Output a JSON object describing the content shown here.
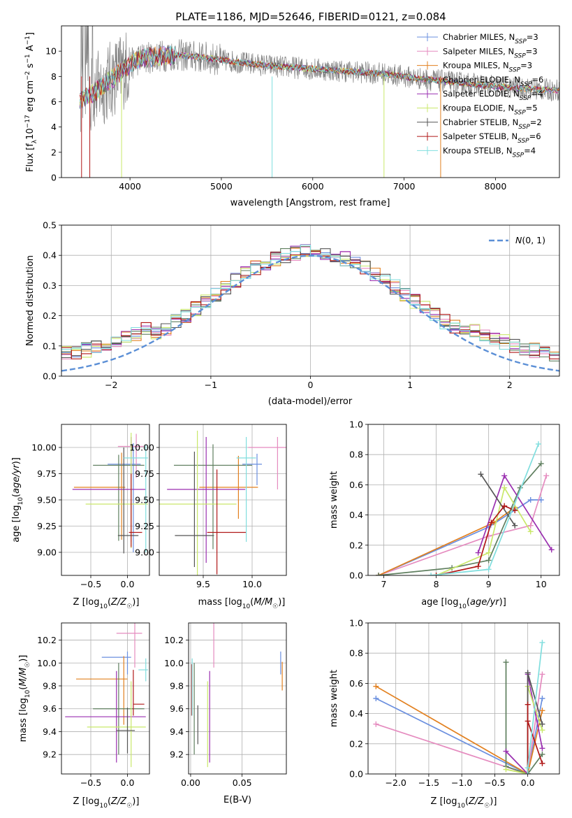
{
  "figure": {
    "title": "PLATE=1186, MJD=52646, FIBERID=0121, z=0.084"
  },
  "colors": {
    "chabrier_miles": "#6a8fdf",
    "salpeter_miles": "#e58bbf",
    "kroupa_miles": "#e2801f",
    "chabrier_elodie": "#5f7f5f",
    "salpeter_elodie": "#9a2fb0",
    "kroupa_elodie": "#c9e86a",
    "chabrier_stelib": "#555555",
    "salpeter_stelib": "#b01818",
    "kroupa_stelib": "#80dede",
    "data": "#808080",
    "gaussian": "#5b8fd6"
  },
  "chart_data": [
    {
      "id": "spectrum",
      "type": "line",
      "title": "PLATE=1186, MJD=52646, FIBERID=0121, z=0.084",
      "xlabel": "wavelength [Angstrom, rest frame]",
      "ylabel": "Flux [f_λ10^-17 erg cm^-2 s^-1 A^-1]",
      "xlim": [
        3250,
        8700
      ],
      "ylim": [
        0,
        12
      ],
      "xticks": [
        4000,
        5000,
        6000,
        7000,
        8000
      ],
      "yticks": [
        0,
        2,
        4,
        6,
        8,
        10
      ],
      "legend_position": "upper right",
      "continuum_x": [
        3500,
        3700,
        3900,
        4100,
        4300,
        4500,
        4800,
        5200,
        5600,
        6000,
        6400,
        6800,
        7200,
        7600,
        8000,
        8400,
        8700
      ],
      "continuum_y": [
        6.2,
        7.2,
        8.4,
        9.4,
        9.6,
        9.7,
        9.5,
        9.1,
        8.8,
        8.6,
        8.4,
        8.2,
        7.8,
        7.5,
        7.2,
        7.0,
        6.9
      ],
      "series": [
        {
          "name": "Chabrier MILES, N_SSP=3",
          "color_key": "chabrier_miles"
        },
        {
          "name": "Salpeter MILES, N_SSP=3",
          "color_key": "salpeter_miles"
        },
        {
          "name": "Kroupa MILES, N_SSP=3",
          "color_key": "kroupa_miles"
        },
        {
          "name": "Chabrier ELODIE, N_SSP=6",
          "color_key": "chabrier_elodie"
        },
        {
          "name": "Salpeter ELODIE, N_SSP=4",
          "color_key": "salpeter_elodie"
        },
        {
          "name": "Kroupa ELODIE, N_SSP=5",
          "color_key": "kroupa_elodie"
        },
        {
          "name": "Chabrier STELIB, N_SSP=2",
          "color_key": "chabrier_stelib"
        },
        {
          "name": "Salpeter STELIB, N_SSP=6",
          "color_key": "salpeter_stelib"
        },
        {
          "name": "Kroupa STELIB, N_SSP=4",
          "color_key": "kroupa_stelib"
        }
      ]
    },
    {
      "id": "residuals",
      "type": "line",
      "xlabel": "(data-model)/error",
      "ylabel": "Normed distribution",
      "xlim": [
        -2.5,
        2.5
      ],
      "ylim": [
        0,
        0.5
      ],
      "xticks": [
        -2,
        -1,
        0,
        1,
        2
      ],
      "yticks": [
        0.0,
        0.1,
        0.2,
        0.3,
        0.4,
        0.5
      ],
      "grid": true,
      "legend_position": "upper right",
      "gaussian_label": "N(0,1)",
      "bin_width": 0.1,
      "bins_start": -2.5,
      "series_keys": [
        "chabrier_miles",
        "salpeter_miles",
        "kroupa_miles",
        "chabrier_elodie",
        "salpeter_elodie",
        "kroupa_elodie",
        "chabrier_stelib",
        "salpeter_stelib",
        "kroupa_stelib"
      ]
    },
    {
      "id": "age_vs_z",
      "type": "scatter",
      "xlabel": "Z [log10(Z/Z☉)]",
      "ylabel": "age  [log10(age/yr)]",
      "xlim": [
        -0.9,
        0.3
      ],
      "ylim": [
        8.78,
        10.22
      ],
      "xticks": [
        -0.5,
        0.0
      ],
      "yticks": [
        9.0,
        9.25,
        9.5,
        9.75,
        10.0
      ],
      "grid": true,
      "points": [
        {
          "key": "chabrier_miles",
          "x": 0.08,
          "xerr": [
            0.35,
            0.1
          ],
          "y": 9.84,
          "yerr": [
            0.84,
            0.2
          ]
        },
        {
          "key": "salpeter_miles",
          "x": 0.12,
          "xerr": [
            0.25,
            0.1
          ],
          "y": 10.01,
          "yerr": [
            0.3,
            0.12
          ]
        },
        {
          "key": "kroupa_miles",
          "x": -0.08,
          "xerr": [
            0.65,
            0.05
          ],
          "y": 9.62,
          "yerr": [
            0.5,
            0.33
          ]
        },
        {
          "key": "chabrier_elodie",
          "x": -0.12,
          "xerr": [
            0.35,
            0.35
          ],
          "y": 9.83,
          "yerr": [
            0.72,
            0.1
          ]
        },
        {
          "key": "salpeter_elodie",
          "x": 0.05,
          "xerr": [
            0.8,
            0.2
          ],
          "y": 9.6,
          "yerr": [
            0.5,
            0.5
          ]
        },
        {
          "key": "kroupa_elodie",
          "x": 0.05,
          "xerr": [
            0.62,
            0.23
          ],
          "y": 9.46,
          "yerr": [
            0.42,
            0.68
          ]
        },
        {
          "key": "chabrier_stelib",
          "x": -0.05,
          "xerr": [
            0.08,
            0.2
          ],
          "y": 9.16,
          "yerr": [
            0.17,
            0.84
          ]
        },
        {
          "key": "salpeter_stelib",
          "x": 0.05,
          "xerr": [
            0.03,
            0.15
          ],
          "y": 9.19,
          "yerr": [
            0.14,
            0.56
          ]
        },
        {
          "key": "kroupa_stelib",
          "x": 0.25,
          "xerr": [
            0.3,
            0.03
          ],
          "y": 9.9,
          "yerr": [
            0.9,
            0.12
          ]
        }
      ]
    },
    {
      "id": "age_vs_mass",
      "type": "scatter",
      "xlabel": "mass [log10(M/M☉)]",
      "ylabel": "",
      "xlim": [
        9.05,
        10.35
      ],
      "ylim": [
        8.78,
        10.22
      ],
      "xticks": [
        9.5,
        10.0
      ],
      "yticks": [
        9.0,
        9.25,
        9.5,
        9.75,
        10.0
      ],
      "grid": true,
      "points": [
        {
          "key": "chabrier_miles",
          "x": 10.05,
          "xerr": [
            0.15,
            0.05
          ],
          "y": 9.84,
          "yerr": [
            0.2,
            0.1
          ]
        },
        {
          "key": "salpeter_miles",
          "x": 10.26,
          "xerr": [
            0.3,
            0.1
          ],
          "y": 10.0,
          "yerr": [
            0.4,
            0.1
          ]
        },
        {
          "key": "kroupa_miles",
          "x": 9.86,
          "xerr": [
            0.4,
            0.2
          ],
          "y": 9.62,
          "yerr": [
            0.3,
            0.3
          ]
        },
        {
          "key": "chabrier_elodie",
          "x": 9.6,
          "xerr": [
            0.4,
            0.4
          ],
          "y": 9.83,
          "yerr": [
            0.8,
            0.2
          ]
        },
        {
          "key": "salpeter_elodie",
          "x": 9.53,
          "xerr": [
            0.4,
            0.4
          ],
          "y": 9.6,
          "yerr": [
            0.7,
            0.5
          ]
        },
        {
          "key": "kroupa_elodie",
          "x": 9.44,
          "xerr": [
            0.4,
            0.4
          ],
          "y": 9.46,
          "yerr": [
            0.8,
            0.7
          ]
        },
        {
          "key": "chabrier_stelib",
          "x": 9.41,
          "xerr": [
            0.2,
            0.2
          ],
          "y": 9.16,
          "yerr": [
            0.3,
            0.8
          ]
        },
        {
          "key": "salpeter_stelib",
          "x": 9.64,
          "xerr": [
            0.1,
            0.3
          ],
          "y": 9.19,
          "yerr": [
            0.4,
            0.6
          ]
        },
        {
          "key": "kroupa_stelib",
          "x": 9.94,
          "xerr": [
            0.1,
            0.1
          ],
          "y": 9.9,
          "yerr": [
            0.8,
            0.2
          ]
        }
      ]
    },
    {
      "id": "mass_weight_vs_age",
      "type": "line",
      "xlabel": "age  [log10(age/yr)]",
      "ylabel": "mass weight",
      "xlim": [
        6.7,
        10.35
      ],
      "ylim": [
        0,
        1
      ],
      "xticks": [
        7,
        8,
        9,
        10
      ],
      "yticks": [
        0.0,
        0.2,
        0.4,
        0.6,
        0.8,
        1.0
      ],
      "grid": true,
      "series": [
        {
          "key": "chabrier_miles",
          "x": [
            6.9,
            9.0,
            9.8,
            10.0
          ],
          "y": [
            0.0,
            0.32,
            0.5,
            0.5
          ]
        },
        {
          "key": "salpeter_miles",
          "x": [
            6.9,
            9.0,
            9.8,
            10.1
          ],
          "y": [
            0.0,
            0.26,
            0.33,
            0.66
          ]
        },
        {
          "key": "kroupa_miles",
          "x": [
            6.9,
            9.1,
            9.5
          ],
          "y": [
            0.0,
            0.35,
            0.45
          ]
        },
        {
          "key": "chabrier_elodie",
          "x": [
            6.9,
            8.3,
            9.0,
            9.6,
            10.0
          ],
          "y": [
            0.0,
            0.05,
            0.1,
            0.58,
            0.74
          ]
        },
        {
          "key": "salpeter_elodie",
          "x": [
            8.8,
            9.3,
            10.2
          ],
          "y": [
            0.15,
            0.66,
            0.17
          ]
        },
        {
          "key": "kroupa_elodie",
          "x": [
            8.0,
            9.0,
            9.3,
            9.8
          ],
          "y": [
            0.0,
            0.15,
            0.58,
            0.29
          ]
        },
        {
          "key": "chabrier_stelib",
          "x": [
            8.85,
            9.5
          ],
          "y": [
            0.67,
            0.33
          ]
        },
        {
          "key": "salpeter_stelib",
          "x": [
            8.0,
            8.8,
            9.05,
            9.3,
            9.5
          ],
          "y": [
            0.0,
            0.06,
            0.35,
            0.46,
            0.43
          ]
        },
        {
          "key": "kroupa_stelib",
          "x": [
            7.9,
            9.0,
            9.95
          ],
          "y": [
            0.0,
            0.04,
            0.87
          ]
        }
      ]
    },
    {
      "id": "mass_vs_z",
      "type": "scatter",
      "xlabel": "Z [log10(Z/Z☉)]",
      "ylabel": "mass [log10(M/M☉)]",
      "xlim": [
        -0.9,
        0.3
      ],
      "ylim": [
        9.03,
        10.35
      ],
      "xticks": [
        -0.5,
        0.0
      ],
      "yticks": [
        9.2,
        9.4,
        9.6,
        9.8,
        10.0,
        10.2
      ],
      "grid": true,
      "points": [
        {
          "key": "chabrier_miles",
          "x": 0.0,
          "xerr": [
            0.35,
            0.05
          ],
          "y": 10.05,
          "yerr": [
            0.15,
            0.05
          ]
        },
        {
          "key": "salpeter_miles",
          "x": 0.1,
          "xerr": [
            0.25,
            0.1
          ],
          "y": 10.26,
          "yerr": [
            0.3,
            0.1
          ]
        },
        {
          "key": "kroupa_miles",
          "x": -0.05,
          "xerr": [
            0.65,
            0.05
          ],
          "y": 9.86,
          "yerr": [
            0.4,
            0.2
          ]
        },
        {
          "key": "chabrier_elodie",
          "x": -0.12,
          "xerr": [
            0.35,
            0.35
          ],
          "y": 9.6,
          "yerr": [
            0.4,
            0.4
          ]
        },
        {
          "key": "salpeter_elodie",
          "x": -0.15,
          "xerr": [
            0.7,
            0.4
          ],
          "y": 9.53,
          "yerr": [
            0.4,
            0.4
          ]
        },
        {
          "key": "kroupa_elodie",
          "x": 0.05,
          "xerr": [
            0.6,
            0.2
          ],
          "y": 9.44,
          "yerr": [
            0.35,
            0.4
          ]
        },
        {
          "key": "chabrier_stelib",
          "x": 0.0,
          "xerr": [
            0.15,
            0.1
          ],
          "y": 9.41,
          "yerr": [
            0.2,
            0.2
          ]
        },
        {
          "key": "salpeter_stelib",
          "x": 0.08,
          "xerr": [
            0.0,
            0.15
          ],
          "y": 9.64,
          "yerr": [
            0.1,
            0.3
          ]
        },
        {
          "key": "kroupa_stelib",
          "x": 0.25,
          "xerr": [
            0.1,
            0.03
          ],
          "y": 9.94,
          "yerr": [
            0.1,
            0.1
          ]
        }
      ]
    },
    {
      "id": "mass_vs_ebv",
      "type": "scatter",
      "xlabel": "E(B-V)",
      "ylabel": "",
      "xlim": [
        -0.002,
        0.093
      ],
      "ylim": [
        9.03,
        10.35
      ],
      "xticks": [
        0.0,
        0.05
      ],
      "yticks": [
        9.2,
        9.4,
        9.6,
        9.8,
        10.0,
        10.2
      ],
      "grid": true,
      "points": [
        {
          "key": "chabrier_miles",
          "x": 0.0875,
          "y": 10.05,
          "yerr": [
            0.15,
            0.05
          ]
        },
        {
          "key": "salpeter_miles",
          "x": 0.0225,
          "y": 10.26,
          "yerr": [
            0.3,
            0.1
          ]
        },
        {
          "key": "kroupa_miles",
          "x": 0.089,
          "y": 9.86,
          "yerr": [
            0.1,
            0.15
          ]
        },
        {
          "key": "chabrier_elodie",
          "x": 0.0035,
          "y": 9.6,
          "yerr": [
            0.4,
            0.4
          ]
        },
        {
          "key": "salpeter_elodie",
          "x": 0.0185,
          "y": 9.53,
          "yerr": [
            0.4,
            0.4
          ]
        },
        {
          "key": "kroupa_elodie",
          "x": 0.0165,
          "y": 9.44,
          "yerr": [
            0.35,
            0.4
          ]
        },
        {
          "key": "chabrier_stelib",
          "x": 0.007,
          "y": 9.41,
          "yerr": [
            0.12,
            0.22
          ]
        },
        {
          "key": "salpeter_stelib",
          "x": 0.001,
          "y": 9.64,
          "yerr": [
            0.1,
            0.35
          ]
        },
        {
          "key": "kroupa_stelib",
          "x": 0.0015,
          "y": 9.94,
          "yerr": [
            0.4,
            0.1
          ]
        }
      ]
    },
    {
      "id": "mass_weight_vs_z",
      "type": "line",
      "xlabel": "Z [log10(Z/Z☉)]",
      "ylabel": "mass weight",
      "xlim": [
        -2.42,
        0.48
      ],
      "ylim": [
        0,
        1
      ],
      "xticks": [
        -2.0,
        -1.5,
        -1.0,
        -0.5,
        0.0
      ],
      "yticks": [
        0.0,
        0.2,
        0.4,
        0.6,
        0.8,
        1.0
      ],
      "grid": true,
      "series": [
        {
          "key": "chabrier_miles",
          "x": [
            -2.3,
            0.0,
            0.22
          ],
          "y": [
            0.5,
            0.0,
            0.5
          ]
        },
        {
          "key": "salpeter_miles",
          "x": [
            -2.3,
            0.0,
            0.22
          ],
          "y": [
            0.33,
            0.0,
            0.66
          ]
        },
        {
          "key": "kroupa_miles",
          "x": [
            -2.3,
            0.0,
            0.22
          ],
          "y": [
            0.58,
            0.0,
            0.42
          ]
        },
        {
          "key": "chabrier_elodie",
          "x": [
            -0.33,
            -0.33,
            0.0,
            0.22
          ],
          "y": [
            0.74,
            0.05,
            0.0,
            0.13
          ]
        },
        {
          "key": "salpeter_elodie",
          "x": [
            -0.33,
            0.0,
            0.0,
            0.22
          ],
          "y": [
            0.15,
            0.0,
            0.66,
            0.17
          ]
        },
        {
          "key": "kroupa_elodie",
          "x": [
            -0.33,
            0.0,
            0.0,
            0.22
          ],
          "y": [
            0.03,
            0.0,
            0.58,
            0.29
          ]
        },
        {
          "key": "chabrier_stelib",
          "x": [
            0.0,
            0.0,
            0.22
          ],
          "y": [
            0.0,
            0.67,
            0.33
          ]
        },
        {
          "key": "salpeter_stelib",
          "x": [
            0.0,
            0.0,
            0.0,
            0.22
          ],
          "y": [
            0.0,
            0.46,
            0.35,
            0.07
          ]
        },
        {
          "key": "kroupa_stelib",
          "x": [
            0.0,
            0.0,
            0.22
          ],
          "y": [
            0.0,
            0.04,
            0.87
          ]
        }
      ]
    }
  ]
}
